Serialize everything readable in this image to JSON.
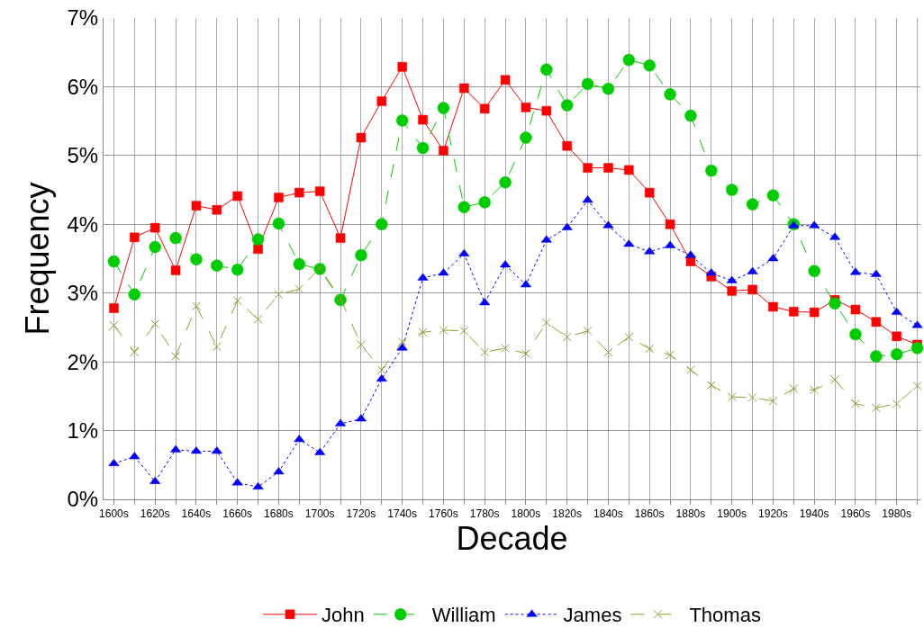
{
  "chart_data": {
    "type": "line",
    "xlabel": "Decade",
    "ylabel": "Frequency",
    "categories": [
      "1600s",
      null,
      "1620s",
      null,
      "1640s",
      null,
      "1660s",
      null,
      "1680s",
      null,
      "1700s",
      null,
      "1720s",
      null,
      "1740s",
      null,
      "1760s",
      null,
      "1780s",
      null,
      "1800s",
      null,
      "1820s",
      null,
      "1840s",
      null,
      "1860s",
      null,
      "1880s",
      null,
      "1900s",
      null,
      "1920s",
      null,
      "1940s",
      null,
      "1960s",
      null,
      "1980s",
      null
    ],
    "ylim": [
      0,
      7
    ],
    "yticks": [
      {
        "value": 0,
        "label": "0%"
      },
      {
        "value": 1,
        "label": "1%"
      },
      {
        "value": 2,
        "label": "2%"
      },
      {
        "value": 3,
        "label": "3%"
      },
      {
        "value": 4,
        "label": "4%"
      },
      {
        "value": 5,
        "label": "5%"
      },
      {
        "value": 6,
        "label": "6%"
      },
      {
        "value": 7,
        "label": "7%"
      }
    ],
    "grid": true,
    "legend": "bottom",
    "series": [
      {
        "name": "John",
        "color": "#ff0000",
        "marker": "square",
        "line_style": "solid",
        "values": [
          2.78,
          3.81,
          3.95,
          3.33,
          4.27,
          4.21,
          4.41,
          3.64,
          4.39,
          4.46,
          4.48,
          3.8,
          5.26,
          5.79,
          6.29,
          5.52,
          5.07,
          5.98,
          5.68,
          6.1,
          5.7,
          5.65,
          5.14,
          4.82,
          4.82,
          4.79,
          4.46,
          4.0,
          3.46,
          3.24,
          3.03,
          3.05,
          2.8,
          2.73,
          2.72,
          2.9,
          2.76,
          2.58,
          2.37,
          2.25
        ]
      },
      {
        "name": "William",
        "color": "#00cc00",
        "marker": "circle",
        "line_style": "dashed",
        "values": [
          3.46,
          2.98,
          3.67,
          3.8,
          3.49,
          3.4,
          3.34,
          3.78,
          4.01,
          3.42,
          3.35,
          2.9,
          3.55,
          4.0,
          5.51,
          5.11,
          5.69,
          4.25,
          4.32,
          4.61,
          5.26,
          6.25,
          5.73,
          6.04,
          5.97,
          6.39,
          6.31,
          5.89,
          5.58,
          4.78,
          4.5,
          4.29,
          4.42,
          4.0,
          3.32,
          2.85,
          2.4,
          2.08,
          2.11,
          2.2
        ]
      },
      {
        "name": "James",
        "color": "#0000ff",
        "marker": "triangle",
        "line_style": "dotted",
        "values": [
          0.52,
          0.62,
          0.26,
          0.72,
          0.7,
          0.7,
          0.24,
          0.18,
          0.4,
          0.87,
          0.68,
          1.1,
          1.17,
          1.75,
          2.2,
          3.22,
          3.29,
          3.57,
          2.86,
          3.41,
          3.12,
          3.77,
          3.95,
          4.35,
          3.98,
          3.71,
          3.6,
          3.69,
          3.55,
          3.29,
          3.18,
          3.31,
          3.5,
          3.98,
          3.98,
          3.81,
          3.3,
          3.27,
          2.72,
          2.53
        ]
      },
      {
        "name": "Thomas",
        "color": "#999933",
        "marker": "cross",
        "line_style": "dashed",
        "values": [
          2.53,
          2.14,
          2.55,
          2.08,
          2.81,
          2.22,
          2.89,
          2.62,
          2.98,
          3.06,
          3.36,
          2.92,
          2.25,
          1.88,
          2.29,
          2.43,
          2.46,
          2.45,
          2.14,
          2.2,
          2.12,
          2.57,
          2.36,
          2.45,
          2.14,
          2.36,
          2.19,
          2.1,
          1.88,
          1.66,
          1.49,
          1.48,
          1.43,
          1.61,
          1.59,
          1.74,
          1.39,
          1.33,
          1.39,
          1.65
        ]
      }
    ]
  }
}
